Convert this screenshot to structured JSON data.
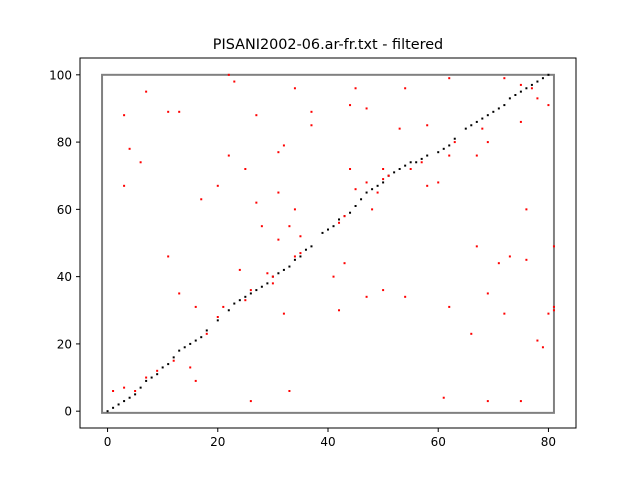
{
  "chart_data": {
    "type": "scatter",
    "title": "PISANI2002-06.ar-fr.txt - filtered",
    "xlabel": "",
    "ylabel": "",
    "xlim": [
      -5,
      85
    ],
    "ylim": [
      -5,
      105
    ],
    "x_ticks": [
      0,
      20,
      40,
      60,
      80
    ],
    "y_ticks": [
      0,
      20,
      40,
      60,
      80,
      100
    ],
    "grid": false,
    "legend": "none",
    "bounding_box": {
      "x": [
        -1,
        81
      ],
      "y": [
        -0.5,
        100
      ],
      "color": "#808080"
    },
    "series": [
      {
        "color": "#000000",
        "points": [
          [
            0,
            0
          ],
          [
            1,
            1
          ],
          [
            2,
            2
          ],
          [
            3,
            3
          ],
          [
            4,
            4
          ],
          [
            5,
            5
          ],
          [
            6,
            7
          ],
          [
            7,
            9
          ],
          [
            8,
            10
          ],
          [
            9,
            11
          ],
          [
            10,
            13
          ],
          [
            11,
            14
          ],
          [
            12,
            16
          ],
          [
            13,
            18
          ],
          [
            14,
            19
          ],
          [
            15,
            20
          ],
          [
            16,
            21
          ],
          [
            17,
            22
          ],
          [
            18,
            24
          ],
          [
            20,
            27
          ],
          [
            22,
            30
          ],
          [
            23,
            32
          ],
          [
            24,
            33
          ],
          [
            25,
            34
          ],
          [
            26,
            35
          ],
          [
            27,
            36
          ],
          [
            28,
            37
          ],
          [
            29,
            38
          ],
          [
            30,
            40
          ],
          [
            31,
            41
          ],
          [
            32,
            42
          ],
          [
            33,
            43
          ],
          [
            34,
            45
          ],
          [
            35,
            46
          ],
          [
            36,
            48
          ],
          [
            37,
            49
          ],
          [
            39,
            53
          ],
          [
            40,
            54
          ],
          [
            41,
            55
          ],
          [
            42,
            57
          ],
          [
            43,
            58
          ],
          [
            44,
            59
          ],
          [
            45,
            61
          ],
          [
            46,
            63
          ],
          [
            47,
            65
          ],
          [
            48,
            66
          ],
          [
            49,
            67
          ],
          [
            50,
            68
          ],
          [
            51,
            70
          ],
          [
            52,
            71
          ],
          [
            53,
            72
          ],
          [
            54,
            73
          ],
          [
            55,
            74
          ],
          [
            56,
            74
          ],
          [
            57,
            75
          ],
          [
            58,
            76
          ],
          [
            60,
            77
          ],
          [
            61,
            78
          ],
          [
            62,
            79
          ],
          [
            63,
            81
          ],
          [
            65,
            84
          ],
          [
            66,
            85
          ],
          [
            67,
            86
          ],
          [
            68,
            87
          ],
          [
            69,
            88
          ],
          [
            70,
            89
          ],
          [
            71,
            90
          ],
          [
            72,
            91
          ],
          [
            73,
            93
          ],
          [
            74,
            94
          ],
          [
            75,
            95
          ],
          [
            76,
            96
          ],
          [
            77,
            97
          ],
          [
            78,
            98
          ],
          [
            79,
            99
          ],
          [
            80,
            100
          ]
        ]
      },
      {
        "color": "#ff0000",
        "points": [
          [
            1,
            6
          ],
          [
            3,
            7
          ],
          [
            3,
            67
          ],
          [
            3,
            88
          ],
          [
            4,
            78
          ],
          [
            5,
            6
          ],
          [
            6,
            74
          ],
          [
            7,
            10
          ],
          [
            7,
            95
          ],
          [
            9,
            12
          ],
          [
            11,
            46
          ],
          [
            11,
            89
          ],
          [
            12,
            15
          ],
          [
            13,
            35
          ],
          [
            13,
            89
          ],
          [
            15,
            13
          ],
          [
            16,
            9
          ],
          [
            16,
            31
          ],
          [
            17,
            63
          ],
          [
            18,
            23
          ],
          [
            20,
            28
          ],
          [
            20,
            67
          ],
          [
            21,
            31
          ],
          [
            22,
            76
          ],
          [
            22,
            100
          ],
          [
            23,
            98
          ],
          [
            24,
            42
          ],
          [
            25,
            33
          ],
          [
            25,
            72
          ],
          [
            26,
            3
          ],
          [
            26,
            36
          ],
          [
            27,
            62
          ],
          [
            27,
            88
          ],
          [
            28,
            55
          ],
          [
            29,
            41
          ],
          [
            30,
            38
          ],
          [
            30,
            40
          ],
          [
            31,
            51
          ],
          [
            31,
            65
          ],
          [
            31,
            77
          ],
          [
            32,
            29
          ],
          [
            32,
            79
          ],
          [
            33,
            6
          ],
          [
            33,
            55
          ],
          [
            34,
            46
          ],
          [
            34,
            60
          ],
          [
            34,
            96
          ],
          [
            35,
            47
          ],
          [
            35,
            52
          ],
          [
            37,
            85
          ],
          [
            37,
            89
          ],
          [
            41,
            40
          ],
          [
            42,
            30
          ],
          [
            42,
            56
          ],
          [
            43,
            44
          ],
          [
            43,
            58
          ],
          [
            44,
            72
          ],
          [
            44,
            91
          ],
          [
            45,
            66
          ],
          [
            45,
            96
          ],
          [
            47,
            34
          ],
          [
            47,
            68
          ],
          [
            47,
            90
          ],
          [
            48,
            60
          ],
          [
            49,
            65
          ],
          [
            50,
            36
          ],
          [
            50,
            72
          ],
          [
            50,
            69
          ],
          [
            51,
            70
          ],
          [
            53,
            84
          ],
          [
            54,
            34
          ],
          [
            54,
            96
          ],
          [
            55,
            72
          ],
          [
            57,
            74
          ],
          [
            58,
            67
          ],
          [
            58,
            85
          ],
          [
            60,
            68
          ],
          [
            61,
            4
          ],
          [
            62,
            31
          ],
          [
            62,
            76
          ],
          [
            62,
            99
          ],
          [
            63,
            80
          ],
          [
            66,
            23
          ],
          [
            67,
            49
          ],
          [
            67,
            76
          ],
          [
            68,
            84
          ],
          [
            69,
            3
          ],
          [
            69,
            35
          ],
          [
            69,
            80
          ],
          [
            71,
            44
          ],
          [
            72,
            29
          ],
          [
            72,
            99
          ],
          [
            73,
            46
          ],
          [
            75,
            3
          ],
          [
            75,
            86
          ],
          [
            75,
            97
          ],
          [
            76,
            45
          ],
          [
            76,
            60
          ],
          [
            77,
            96
          ],
          [
            78,
            21
          ],
          [
            78,
            93
          ],
          [
            79,
            19
          ],
          [
            80,
            29
          ],
          [
            80,
            91
          ],
          [
            81,
            30
          ],
          [
            81,
            31
          ],
          [
            81,
            49
          ]
        ]
      }
    ]
  }
}
